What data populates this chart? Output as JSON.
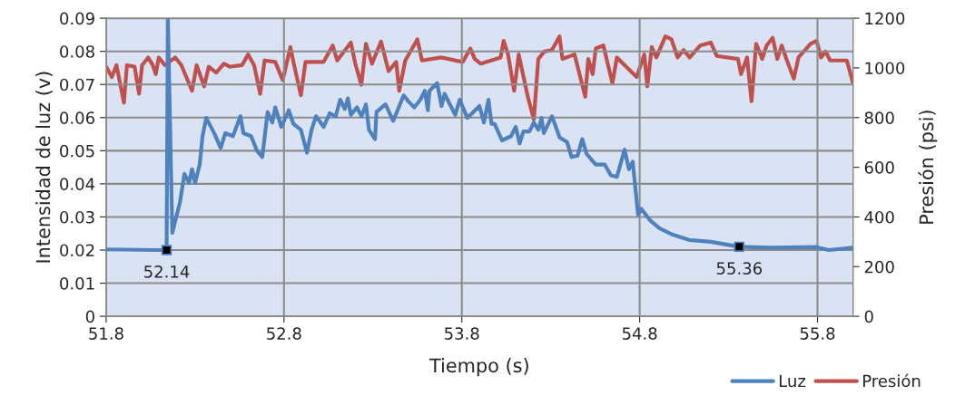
{
  "chart_data": {
    "type": "line",
    "xlabel": "Tiempo (s)",
    "ylabel": "Intensidad de luz (v)",
    "y2label": "Presión (psi)",
    "xlim": [
      51.8,
      56.0
    ],
    "xticks": [
      51.8,
      52.8,
      53.8,
      54.8,
      55.8
    ],
    "ylim": [
      0,
      0.09
    ],
    "yticks": [
      0,
      0.01,
      0.02,
      0.03,
      0.04,
      0.05,
      0.06,
      0.07,
      0.08,
      0.09
    ],
    "y2lim": [
      0,
      1200
    ],
    "y2ticks": [
      0,
      200,
      400,
      600,
      800,
      1000,
      1200
    ],
    "grid": true,
    "legend": "bottom right",
    "marker": "none",
    "line_style": "solid",
    "annotations": [
      {
        "text": "52.14",
        "x": 52.14,
        "y": 0.02
      },
      {
        "text": "55.36",
        "x": 55.36,
        "y": 0.021
      }
    ],
    "series": [
      {
        "name": "Presión",
        "color": "#c0504d",
        "axis": "y2",
        "x": [
          51.8,
          51.832,
          51.858,
          51.9,
          51.917,
          51.96,
          51.985,
          52.002,
          52.036,
          52.062,
          52.079,
          52.096,
          52.13,
          52.189,
          52.223,
          52.283,
          52.309,
          52.351,
          52.377,
          52.419,
          52.462,
          52.496,
          52.564,
          52.598,
          52.632,
          52.666,
          52.691,
          52.751,
          52.793,
          52.836,
          52.853,
          52.895,
          52.921,
          53.023,
          53.074,
          53.099,
          53.176,
          53.201,
          53.235,
          53.261,
          53.295,
          53.346,
          53.388,
          53.431,
          53.448,
          53.482,
          53.55,
          53.576,
          53.686,
          53.805,
          53.848,
          53.873,
          53.907,
          54.018,
          54.035,
          54.06,
          54.094,
          54.12,
          54.171,
          54.205,
          54.23,
          54.264,
          54.307,
          54.349,
          54.366,
          54.434,
          54.494,
          54.511,
          54.536,
          54.553,
          54.596,
          54.647,
          54.672,
          54.783,
          54.826,
          54.843,
          54.868,
          54.894,
          54.945,
          54.979,
          55.013,
          55.047,
          55.081,
          55.14,
          55.2,
          55.234,
          55.353,
          55.37,
          55.404,
          55.429,
          55.455,
          55.489,
          55.514,
          55.548,
          55.574,
          55.599,
          55.625,
          55.667,
          55.693,
          55.761,
          55.795,
          55.82,
          55.846,
          55.871,
          55.965,
          56.0
        ],
        "values": [
          1005,
          963,
          1011,
          860,
          1011,
          1005,
          896,
          1011,
          1042,
          1011,
          975,
          1042,
          1011,
          1042,
          1011,
          908,
          1011,
          926,
          1005,
          981,
          1017,
          1005,
          1011,
          1054,
          1011,
          896,
          1030,
          1024,
          951,
          1084,
          1024,
          890,
          1024,
          1024,
          1090,
          1030,
          1102,
          1017,
          932,
          1097,
          1017,
          1106,
          987,
          1024,
          908,
          1030,
          1115,
          1030,
          1042,
          1024,
          1078,
          1036,
          1017,
          1042,
          1109,
          1054,
          908,
          1054,
          884,
          793,
          1036,
          1066,
          1072,
          1127,
          1036,
          1054,
          884,
          1036,
          975,
          1078,
          1090,
          938,
          1042,
          963,
          1054,
          926,
          1084,
          1042,
          1127,
          1115,
          1042,
          1072,
          1042,
          1090,
          1102,
          1048,
          1036,
          975,
          1042,
          866,
          1097,
          1036,
          1090,
          1121,
          1036,
          1090,
          1036,
          957,
          1042,
          1097,
          1109,
          1042,
          1066,
          1030,
          1030,
          938
        ]
      },
      {
        "name": "Luz",
        "color": "#4f81bd",
        "axis": "y",
        "x": [
          51.8,
          52.096,
          52.14,
          52.147,
          52.172,
          52.215,
          52.24,
          52.266,
          52.283,
          52.3,
          52.326,
          52.342,
          52.363,
          52.411,
          52.444,
          52.47,
          52.513,
          52.555,
          52.572,
          52.615,
          52.649,
          52.678,
          52.708,
          52.734,
          52.751,
          52.785,
          52.827,
          52.853,
          52.895,
          52.929,
          52.955,
          52.98,
          53.023,
          53.057,
          53.091,
          53.116,
          53.142,
          53.159,
          53.176,
          53.21,
          53.236,
          53.261,
          53.278,
          53.312,
          53.32,
          53.371,
          53.414,
          53.473,
          53.499,
          53.533,
          53.567,
          53.592,
          53.609,
          53.618,
          53.661,
          53.686,
          53.703,
          53.763,
          53.788,
          53.831,
          53.899,
          53.924,
          53.95,
          53.967,
          53.984,
          54.026,
          54.077,
          54.103,
          54.125,
          54.146,
          54.18,
          54.205,
          54.231,
          54.248,
          54.261,
          54.307,
          54.35,
          54.392,
          54.417,
          54.451,
          54.477,
          54.502,
          54.553,
          54.604,
          54.638,
          54.672,
          54.715,
          54.74,
          54.761,
          54.791,
          54.808,
          54.86,
          54.911,
          54.979,
          55.081,
          55.2,
          55.36,
          55.54,
          55.795,
          55.863,
          56.0
        ],
        "values": [
          0.0202,
          0.02,
          0.02,
          0.09,
          0.0252,
          0.0344,
          0.043,
          0.0403,
          0.0444,
          0.0403,
          0.0458,
          0.0544,
          0.0599,
          0.0549,
          0.0508,
          0.0553,
          0.0544,
          0.0604,
          0.0553,
          0.0544,
          0.0499,
          0.0481,
          0.0617,
          0.0585,
          0.0631,
          0.0572,
          0.0622,
          0.0581,
          0.0563,
          0.0494,
          0.0563,
          0.0604,
          0.0572,
          0.0613,
          0.0604,
          0.0654,
          0.0626,
          0.0658,
          0.0608,
          0.0631,
          0.0604,
          0.064,
          0.0563,
          0.0535,
          0.0617,
          0.064,
          0.059,
          0.0667,
          0.0649,
          0.0631,
          0.0654,
          0.0681,
          0.0622,
          0.0681,
          0.0704,
          0.0635,
          0.0672,
          0.0608,
          0.0654,
          0.0599,
          0.0635,
          0.0585,
          0.0654,
          0.0581,
          0.0581,
          0.0531,
          0.0544,
          0.0572,
          0.0522,
          0.0558,
          0.0558,
          0.0585,
          0.0563,
          0.0599,
          0.0553,
          0.0604,
          0.054,
          0.0526,
          0.0481,
          0.0485,
          0.0535,
          0.049,
          0.0458,
          0.0458,
          0.0426,
          0.0421,
          0.0503,
          0.0444,
          0.0467,
          0.0307,
          0.0325,
          0.0289,
          0.0266,
          0.0248,
          0.023,
          0.0225,
          0.021,
          0.0207,
          0.0209,
          0.02,
          0.0207
        ]
      }
    ]
  }
}
